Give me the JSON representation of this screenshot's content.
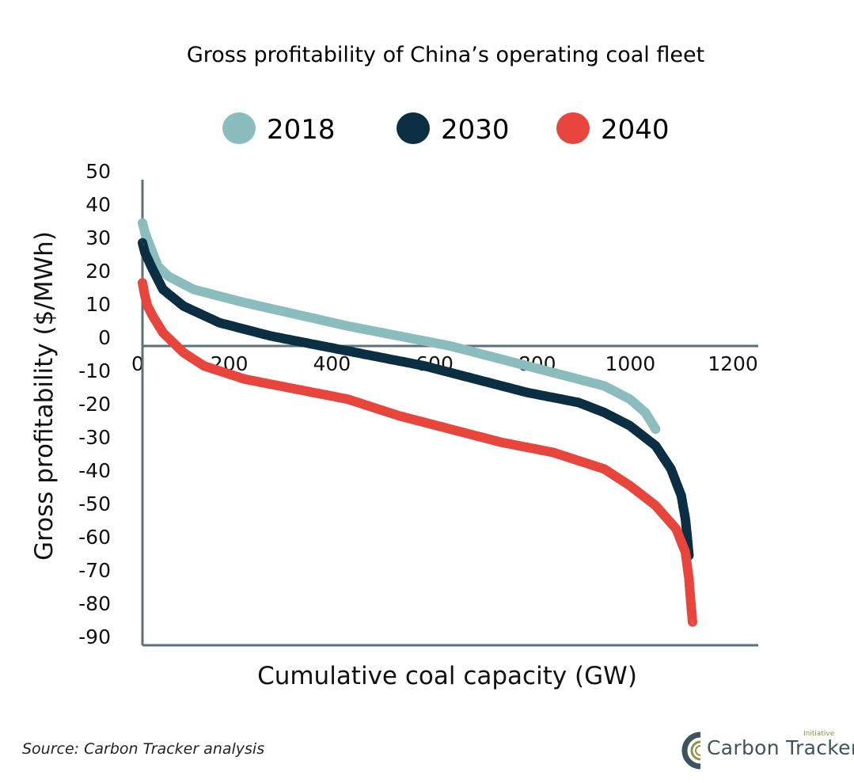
{
  "chart_data": {
    "type": "scatter",
    "title": "Gross profitability of China’s operating coal fleet",
    "xlabel": "Cumulative coal capacity (GW)",
    "ylabel": "Gross profitability ($/MWh)",
    "xlim": [
      0,
      1200
    ],
    "ylim": [
      -90,
      50
    ],
    "x_ticks": [
      0,
      200,
      400,
      600,
      800,
      1000,
      1200
    ],
    "x_tick_labels": [
      "0",
      "200",
      "400",
      "600",
      "800",
      "1000",
      "1200"
    ],
    "y_ticks": [
      50,
      40,
      30,
      20,
      10,
      0,
      -10,
      -20,
      -30,
      -40,
      -50,
      -60,
      -70,
      -80,
      -90
    ],
    "y_tick_labels": [
      "50",
      "40",
      "30",
      "20",
      "10",
      "0",
      "-10",
      "-20",
      "-30",
      "-40",
      "-50",
      "-60",
      "-70",
      "-80",
      "-90"
    ],
    "grid": false,
    "legend_position": "top",
    "marker": "open-circle",
    "series": [
      {
        "name": "2018",
        "color": "#8bbdbf",
        "points": [
          [
            0,
            37
          ],
          [
            5,
            34
          ],
          [
            15,
            30
          ],
          [
            30,
            24
          ],
          [
            50,
            21
          ],
          [
            100,
            17
          ],
          [
            200,
            13
          ],
          [
            300,
            9.5
          ],
          [
            400,
            6
          ],
          [
            500,
            3
          ],
          [
            600,
            0
          ],
          [
            650,
            -2
          ],
          [
            700,
            -4
          ],
          [
            800,
            -8
          ],
          [
            850,
            -10
          ],
          [
            900,
            -12
          ],
          [
            950,
            -16
          ],
          [
            980,
            -20
          ],
          [
            1000,
            -25
          ]
        ]
      },
      {
        "name": "2030",
        "color": "#0b2e42",
        "points": [
          [
            0,
            31
          ],
          [
            5,
            28
          ],
          [
            20,
            23
          ],
          [
            40,
            17
          ],
          [
            80,
            12
          ],
          [
            150,
            7
          ],
          [
            250,
            3
          ],
          [
            350,
            0
          ],
          [
            450,
            -3
          ],
          [
            550,
            -6
          ],
          [
            650,
            -10
          ],
          [
            750,
            -14
          ],
          [
            850,
            -17
          ],
          [
            900,
            -20
          ],
          [
            950,
            -24
          ],
          [
            1000,
            -30
          ],
          [
            1030,
            -37
          ],
          [
            1050,
            -45
          ],
          [
            1058,
            -52
          ],
          [
            1062,
            -58
          ],
          [
            1065,
            -63
          ]
        ]
      },
      {
        "name": "2040",
        "color": "#e8453c",
        "points": [
          [
            0,
            19
          ],
          [
            5,
            15
          ],
          [
            10,
            12
          ],
          [
            20,
            9
          ],
          [
            40,
            4
          ],
          [
            80,
            -2
          ],
          [
            120,
            -6
          ],
          [
            200,
            -10
          ],
          [
            300,
            -13
          ],
          [
            400,
            -16
          ],
          [
            500,
            -21
          ],
          [
            600,
            -25
          ],
          [
            700,
            -29
          ],
          [
            800,
            -32
          ],
          [
            900,
            -37
          ],
          [
            950,
            -42
          ],
          [
            1000,
            -48
          ],
          [
            1040,
            -55
          ],
          [
            1058,
            -62
          ],
          [
            1065,
            -70
          ],
          [
            1068,
            -76
          ],
          [
            1072,
            -83
          ]
        ]
      }
    ]
  },
  "axis_color": "#5d717a",
  "source": "Source: Carbon Tracker analysis",
  "logo": {
    "name": "Carbon Tracker",
    "superscript": "Initiative",
    "ring_color": "#3e545c",
    "accent_color": "#8f9447"
  }
}
